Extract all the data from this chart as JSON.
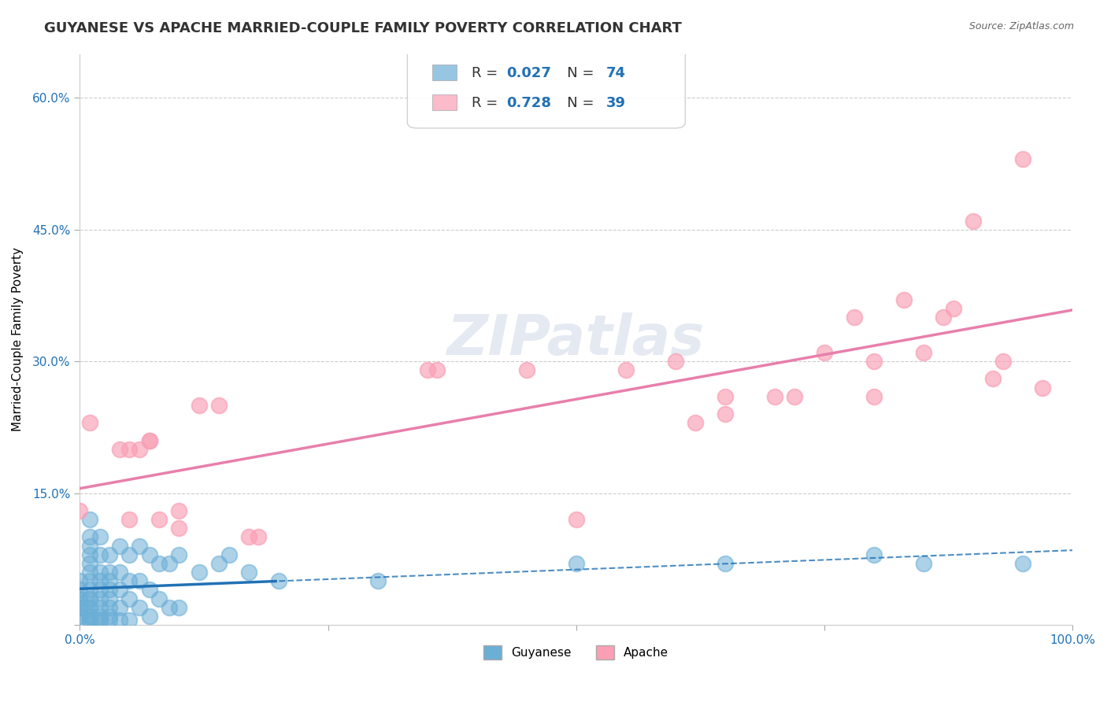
{
  "title": "GUYANESE VS APACHE MARRIED-COUPLE FAMILY POVERTY CORRELATION CHART",
  "source": "Source: ZipAtlas.com",
  "ylabel": "Married-Couple Family Poverty",
  "xlabel": "",
  "watermark": "ZIPatlas",
  "xlim": [
    0,
    1.0
  ],
  "ylim": [
    0,
    0.65
  ],
  "xticks": [
    0.0,
    0.25,
    0.5,
    0.75,
    1.0
  ],
  "xticklabels": [
    "0.0%",
    "",
    "",
    "",
    "100.0%"
  ],
  "yticks": [
    0.0,
    0.15,
    0.3,
    0.45,
    0.6
  ],
  "yticklabels": [
    "",
    "15.0%",
    "30.0%",
    "45.0%",
    "60.0%"
  ],
  "guyanese_R": 0.027,
  "guyanese_N": 74,
  "apache_R": 0.728,
  "apache_N": 39,
  "guyanese_color": "#6baed6",
  "apache_color": "#fa9fb5",
  "guyanese_line_color": "#2171b5",
  "apache_line_color": "#e87fab",
  "background_color": "#ffffff",
  "grid_color": "#cccccc",
  "title_fontsize": 13,
  "axis_label_fontsize": 11,
  "tick_fontsize": 11,
  "legend_fontsize": 13,
  "guyanese_x": [
    0.0,
    0.0,
    0.0,
    0.0,
    0.0,
    0.0,
    0.0,
    0.0,
    0.01,
    0.01,
    0.01,
    0.01,
    0.01,
    0.01,
    0.01,
    0.01,
    0.01,
    0.01,
    0.01,
    0.01,
    0.01,
    0.01,
    0.01,
    0.01,
    0.02,
    0.02,
    0.02,
    0.02,
    0.02,
    0.02,
    0.02,
    0.02,
    0.02,
    0.02,
    0.03,
    0.03,
    0.03,
    0.03,
    0.03,
    0.03,
    0.03,
    0.03,
    0.04,
    0.04,
    0.04,
    0.04,
    0.04,
    0.05,
    0.05,
    0.05,
    0.05,
    0.06,
    0.06,
    0.06,
    0.07,
    0.07,
    0.07,
    0.08,
    0.08,
    0.09,
    0.09,
    0.1,
    0.1,
    0.12,
    0.14,
    0.15,
    0.17,
    0.2,
    0.3,
    0.5,
    0.65,
    0.8,
    0.85,
    0.95
  ],
  "guyanese_y": [
    0.05,
    0.04,
    0.03,
    0.03,
    0.02,
    0.02,
    0.01,
    0.01,
    0.12,
    0.1,
    0.09,
    0.08,
    0.07,
    0.06,
    0.05,
    0.04,
    0.03,
    0.03,
    0.02,
    0.02,
    0.01,
    0.01,
    0.005,
    0.005,
    0.1,
    0.08,
    0.06,
    0.05,
    0.04,
    0.03,
    0.02,
    0.01,
    0.005,
    0.005,
    0.08,
    0.06,
    0.05,
    0.04,
    0.03,
    0.02,
    0.01,
    0.005,
    0.09,
    0.06,
    0.04,
    0.02,
    0.005,
    0.08,
    0.05,
    0.03,
    0.005,
    0.09,
    0.05,
    0.02,
    0.08,
    0.04,
    0.01,
    0.07,
    0.03,
    0.07,
    0.02,
    0.08,
    0.02,
    0.06,
    0.07,
    0.08,
    0.06,
    0.05,
    0.05,
    0.07,
    0.07,
    0.08,
    0.07,
    0.07
  ],
  "apache_x": [
    0.0,
    0.01,
    0.04,
    0.05,
    0.05,
    0.06,
    0.07,
    0.07,
    0.08,
    0.1,
    0.1,
    0.12,
    0.14,
    0.17,
    0.18,
    0.35,
    0.36,
    0.45,
    0.5,
    0.55,
    0.6,
    0.62,
    0.65,
    0.65,
    0.7,
    0.72,
    0.75,
    0.78,
    0.8,
    0.8,
    0.83,
    0.85,
    0.87,
    0.88,
    0.9,
    0.92,
    0.93,
    0.95,
    0.97
  ],
  "apache_y": [
    0.13,
    0.23,
    0.2,
    0.2,
    0.12,
    0.2,
    0.21,
    0.21,
    0.12,
    0.11,
    0.13,
    0.25,
    0.25,
    0.1,
    0.1,
    0.29,
    0.29,
    0.29,
    0.12,
    0.29,
    0.3,
    0.23,
    0.24,
    0.26,
    0.26,
    0.26,
    0.31,
    0.35,
    0.3,
    0.26,
    0.37,
    0.31,
    0.35,
    0.36,
    0.46,
    0.28,
    0.3,
    0.53,
    0.27
  ]
}
